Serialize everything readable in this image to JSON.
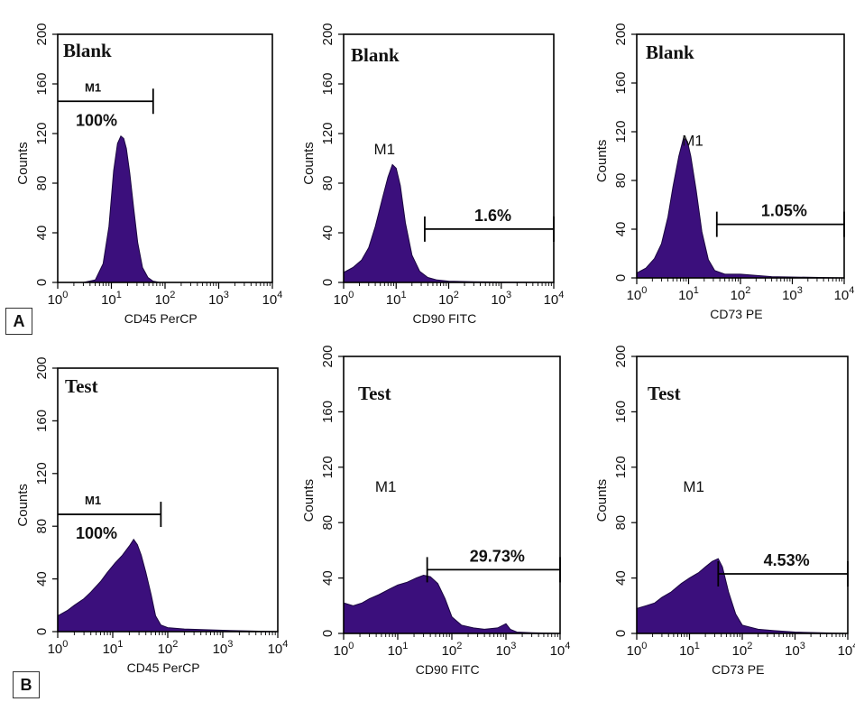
{
  "figure": {
    "panel_labels": [
      "A",
      "B"
    ],
    "histogram_color": "#3b0f7c",
    "outline_color": "#000000"
  },
  "chart_data": [
    {
      "type": "area",
      "row": "A",
      "title": "Blank",
      "xlabel": "CD45 PerCP",
      "ylabel": "Counts",
      "xscale": "log",
      "xlim": [
        1,
        10000
      ],
      "ylim": [
        0,
        200
      ],
      "xticks": [
        1,
        10,
        100,
        1000,
        10000
      ],
      "yticks": [
        0,
        40,
        80,
        120,
        160,
        200
      ],
      "gate": {
        "name": "M1",
        "percent": "100%",
        "x_range": [
          1,
          60
        ],
        "y": 146
      },
      "histogram": [
        [
          1,
          0
        ],
        [
          3,
          0
        ],
        [
          5,
          2
        ],
        [
          7,
          15
        ],
        [
          9,
          45
        ],
        [
          11,
          90
        ],
        [
          13,
          112
        ],
        [
          15,
          118
        ],
        [
          17,
          116
        ],
        [
          19,
          108
        ],
        [
          22,
          88
        ],
        [
          26,
          60
        ],
        [
          31,
          32
        ],
        [
          38,
          12
        ],
        [
          48,
          4
        ],
        [
          60,
          1
        ],
        [
          80,
          0
        ],
        [
          10000,
          0
        ]
      ]
    },
    {
      "type": "area",
      "row": "A",
      "title": "Blank",
      "xlabel": "CD90 FITC",
      "ylabel": "Counts",
      "xscale": "log",
      "xlim": [
        1,
        10000
      ],
      "ylim": [
        0,
        200
      ],
      "xticks": [
        1,
        10,
        100,
        1000,
        10000
      ],
      "yticks": [
        0,
        40,
        80,
        120,
        160,
        200
      ],
      "gate": {
        "name": "M1",
        "percent": "1.6%",
        "x_range": [
          35,
          10000
        ],
        "y": 43
      },
      "histogram": [
        [
          1,
          8
        ],
        [
          1.5,
          12
        ],
        [
          2.2,
          18
        ],
        [
          3,
          28
        ],
        [
          4,
          45
        ],
        [
          5.5,
          68
        ],
        [
          7,
          85
        ],
        [
          8.5,
          95
        ],
        [
          10,
          92
        ],
        [
          12,
          78
        ],
        [
          15,
          48
        ],
        [
          20,
          22
        ],
        [
          28,
          9
        ],
        [
          40,
          4
        ],
        [
          60,
          2
        ],
        [
          100,
          1
        ],
        [
          300,
          0.5
        ],
        [
          10000,
          0
        ]
      ]
    },
    {
      "type": "area",
      "row": "A",
      "title": "Blank",
      "xlabel": "CD73 PE",
      "ylabel": "Counts",
      "xscale": "log",
      "xlim": [
        1,
        10000
      ],
      "ylim": [
        0,
        200
      ],
      "xticks": [
        1,
        10,
        100,
        1000,
        10000
      ],
      "yticks": [
        0,
        40,
        80,
        120,
        160,
        200
      ],
      "gate": {
        "name": "M1",
        "percent": "1.05%",
        "x_range": [
          35,
          10000
        ],
        "y": 44
      },
      "histogram": [
        [
          1,
          4
        ],
        [
          1.5,
          8
        ],
        [
          2.2,
          16
        ],
        [
          3,
          28
        ],
        [
          4,
          50
        ],
        [
          5,
          75
        ],
        [
          6.5,
          100
        ],
        [
          8,
          115
        ],
        [
          9.5,
          112
        ],
        [
          11,
          100
        ],
        [
          14,
          72
        ],
        [
          18,
          38
        ],
        [
          24,
          15
        ],
        [
          32,
          6
        ],
        [
          50,
          3
        ],
        [
          100,
          3
        ],
        [
          200,
          2
        ],
        [
          400,
          1
        ],
        [
          10000,
          0
        ]
      ]
    },
    {
      "type": "area",
      "row": "B",
      "title": "Test",
      "xlabel": "CD45 PerCP",
      "ylabel": "Counts",
      "xscale": "log",
      "xlim": [
        1,
        10000
      ],
      "ylim": [
        0,
        200
      ],
      "xticks": [
        1,
        10,
        100,
        1000,
        10000
      ],
      "yticks": [
        0,
        40,
        80,
        120,
        160,
        200
      ],
      "gate": {
        "name": "M1",
        "percent": "100%",
        "x_range": [
          1,
          75
        ],
        "y": 89
      },
      "histogram": [
        [
          1,
          12
        ],
        [
          1.5,
          16
        ],
        [
          2,
          20
        ],
        [
          3,
          25
        ],
        [
          4,
          30
        ],
        [
          6,
          38
        ],
        [
          8,
          45
        ],
        [
          11,
          52
        ],
        [
          15,
          58
        ],
        [
          20,
          65
        ],
        [
          24,
          70
        ],
        [
          28,
          66
        ],
        [
          33,
          58
        ],
        [
          40,
          45
        ],
        [
          50,
          28
        ],
        [
          60,
          12
        ],
        [
          75,
          5
        ],
        [
          100,
          3
        ],
        [
          200,
          2
        ],
        [
          1000,
          1
        ],
        [
          3000,
          0.5
        ],
        [
          10000,
          0
        ]
      ]
    },
    {
      "type": "area",
      "row": "B",
      "title": "Test",
      "xlabel": "CD90 FITC",
      "ylabel": "Counts",
      "xscale": "log",
      "xlim": [
        1,
        10000
      ],
      "ylim": [
        0,
        200
      ],
      "xticks": [
        1,
        10,
        100,
        1000,
        10000
      ],
      "yticks": [
        0,
        40,
        80,
        120,
        160,
        200
      ],
      "gate": {
        "name": "M1",
        "percent": "29.73%",
        "x_range": [
          35,
          10000
        ],
        "y": 46
      },
      "histogram": [
        [
          1,
          22
        ],
        [
          1.5,
          20
        ],
        [
          2.2,
          22
        ],
        [
          3,
          25
        ],
        [
          4.5,
          28
        ],
        [
          7,
          32
        ],
        [
          10,
          35
        ],
        [
          15,
          37
        ],
        [
          22,
          40
        ],
        [
          30,
          42
        ],
        [
          40,
          41
        ],
        [
          55,
          36
        ],
        [
          75,
          25
        ],
        [
          100,
          12
        ],
        [
          150,
          6
        ],
        [
          250,
          4
        ],
        [
          400,
          3
        ],
        [
          700,
          4
        ],
        [
          1000,
          7
        ],
        [
          1200,
          3
        ],
        [
          1600,
          1
        ],
        [
          3000,
          0.5
        ],
        [
          10000,
          0
        ]
      ]
    },
    {
      "type": "area",
      "row": "B",
      "title": "Test",
      "xlabel": "CD73 PE",
      "ylabel": "Counts",
      "xscale": "log",
      "xlim": [
        1,
        10000
      ],
      "ylim": [
        0,
        200
      ],
      "xticks": [
        1,
        10,
        100,
        1000,
        10000
      ],
      "yticks": [
        0,
        40,
        80,
        120,
        160,
        200
      ],
      "gate": {
        "name": "M1",
        "percent": "4.53%",
        "x_range": [
          35,
          10000
        ],
        "y": 43
      },
      "histogram": [
        [
          1,
          18
        ],
        [
          1.5,
          20
        ],
        [
          2.2,
          22
        ],
        [
          3,
          26
        ],
        [
          4.5,
          30
        ],
        [
          7,
          36
        ],
        [
          10,
          40
        ],
        [
          15,
          44
        ],
        [
          20,
          48
        ],
        [
          27,
          52
        ],
        [
          35,
          54
        ],
        [
          42,
          48
        ],
        [
          55,
          30
        ],
        [
          75,
          14
        ],
        [
          100,
          6
        ],
        [
          200,
          3
        ],
        [
          400,
          2
        ],
        [
          1000,
          1
        ],
        [
          3000,
          0.5
        ],
        [
          10000,
          0
        ]
      ]
    }
  ]
}
